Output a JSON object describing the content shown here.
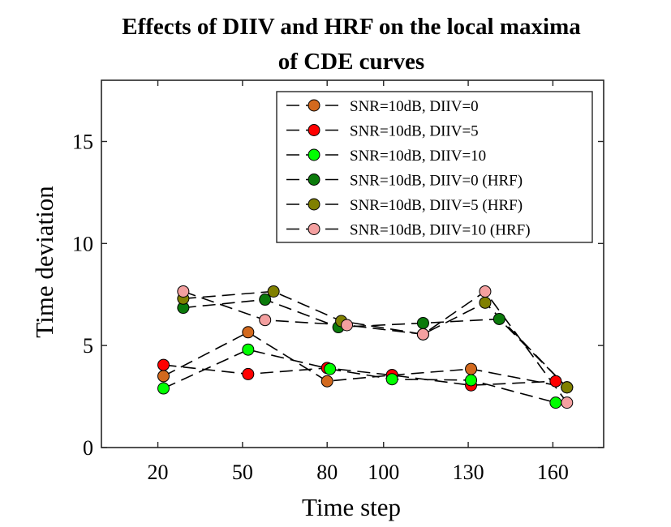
{
  "chart_data": {
    "type": "line",
    "title": "Effects of DIIV and HRF on the local maxima of CDE curves",
    "title_lines": [
      "Effects of DIIV and HRF on the local maxima",
      "of CDE curves"
    ],
    "xlabel": "Time step",
    "ylabel": "Time deviation",
    "xlim": [
      0,
      178
    ],
    "ylim": [
      0,
      18
    ],
    "xticks": [
      20,
      50,
      80,
      100,
      130,
      160
    ],
    "yticks": [
      0,
      5,
      10,
      15
    ],
    "grid": false,
    "legend_position": "top-right",
    "line_style": "dashed",
    "line_color": "#000000",
    "series": [
      {
        "name": "SNR=10dB, DIIV=0",
        "color": "#D2691E",
        "x": [
          22,
          52,
          80,
          103,
          131,
          165
        ],
        "y": [
          3.5,
          5.65,
          3.25,
          3.55,
          3.85,
          2.95
        ]
      },
      {
        "name": "SNR=10dB, DIIV=5",
        "color": "#FF0000",
        "x": [
          22,
          52,
          80,
          103,
          131,
          161
        ],
        "y": [
          4.05,
          3.6,
          3.9,
          3.55,
          3.05,
          3.25
        ]
      },
      {
        "name": "SNR=10dB, DIIV=10",
        "color": "#00FF00",
        "x": [
          22,
          52,
          81,
          103,
          131,
          161
        ],
        "y": [
          2.9,
          4.8,
          3.85,
          3.35,
          3.3,
          2.2
        ]
      },
      {
        "name": "SNR=10dB, DIIV=0 (HRF)",
        "color": "#0B7A0B",
        "x": [
          29,
          58,
          84,
          114,
          141,
          165
        ],
        "y": [
          6.85,
          7.25,
          5.9,
          6.1,
          6.3,
          2.95
        ]
      },
      {
        "name": "SNR=10dB, DIIV=5 (HRF)",
        "color": "#808000",
        "x": [
          29,
          61,
          85,
          114,
          136,
          165
        ],
        "y": [
          7.3,
          7.65,
          6.2,
          5.55,
          7.1,
          2.95
        ]
      },
      {
        "name": "SNR=10dB, DIIV=10 (HRF)",
        "color": "#F4A0A0",
        "x": [
          29,
          58,
          87,
          114,
          136,
          165
        ],
        "y": [
          7.65,
          6.25,
          6.0,
          5.55,
          7.65,
          2.2
        ]
      }
    ]
  }
}
